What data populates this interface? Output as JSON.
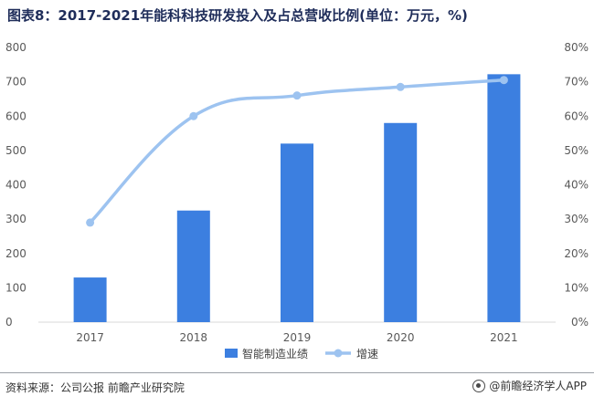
{
  "title": "图表8：2017-2021年能科科技研发投入及占总营收比例(单位：万元，%)",
  "source": "资料来源：公司公报 前瞻产业研究院",
  "brand": "@前瞻经济学人APP",
  "colors": {
    "bar": "#3c7fe0",
    "line": "#9dc3f0",
    "axis": "#d9d9d9"
  },
  "chart_data": {
    "type": "bar",
    "categories": [
      "2017",
      "2018",
      "2019",
      "2020",
      "2021"
    ],
    "series": [
      {
        "name": "智能制造业绩",
        "type": "bar",
        "axis": "left",
        "values": [
          130,
          325,
          520,
          580,
          722
        ]
      },
      {
        "name": "增速",
        "type": "line",
        "axis": "right",
        "values": [
          29,
          60,
          66,
          68.5,
          70.5
        ]
      }
    ],
    "left_axis": {
      "ticks": [
        "0",
        "100",
        "200",
        "300",
        "400",
        "500",
        "600",
        "700",
        "800"
      ],
      "ylim": [
        0,
        800
      ]
    },
    "right_axis": {
      "ticks": [
        "0%",
        "10%",
        "20%",
        "30%",
        "40%",
        "50%",
        "60%",
        "70%",
        "80%"
      ],
      "ylim": [
        0,
        80
      ]
    },
    "legend_position": "bottom"
  }
}
